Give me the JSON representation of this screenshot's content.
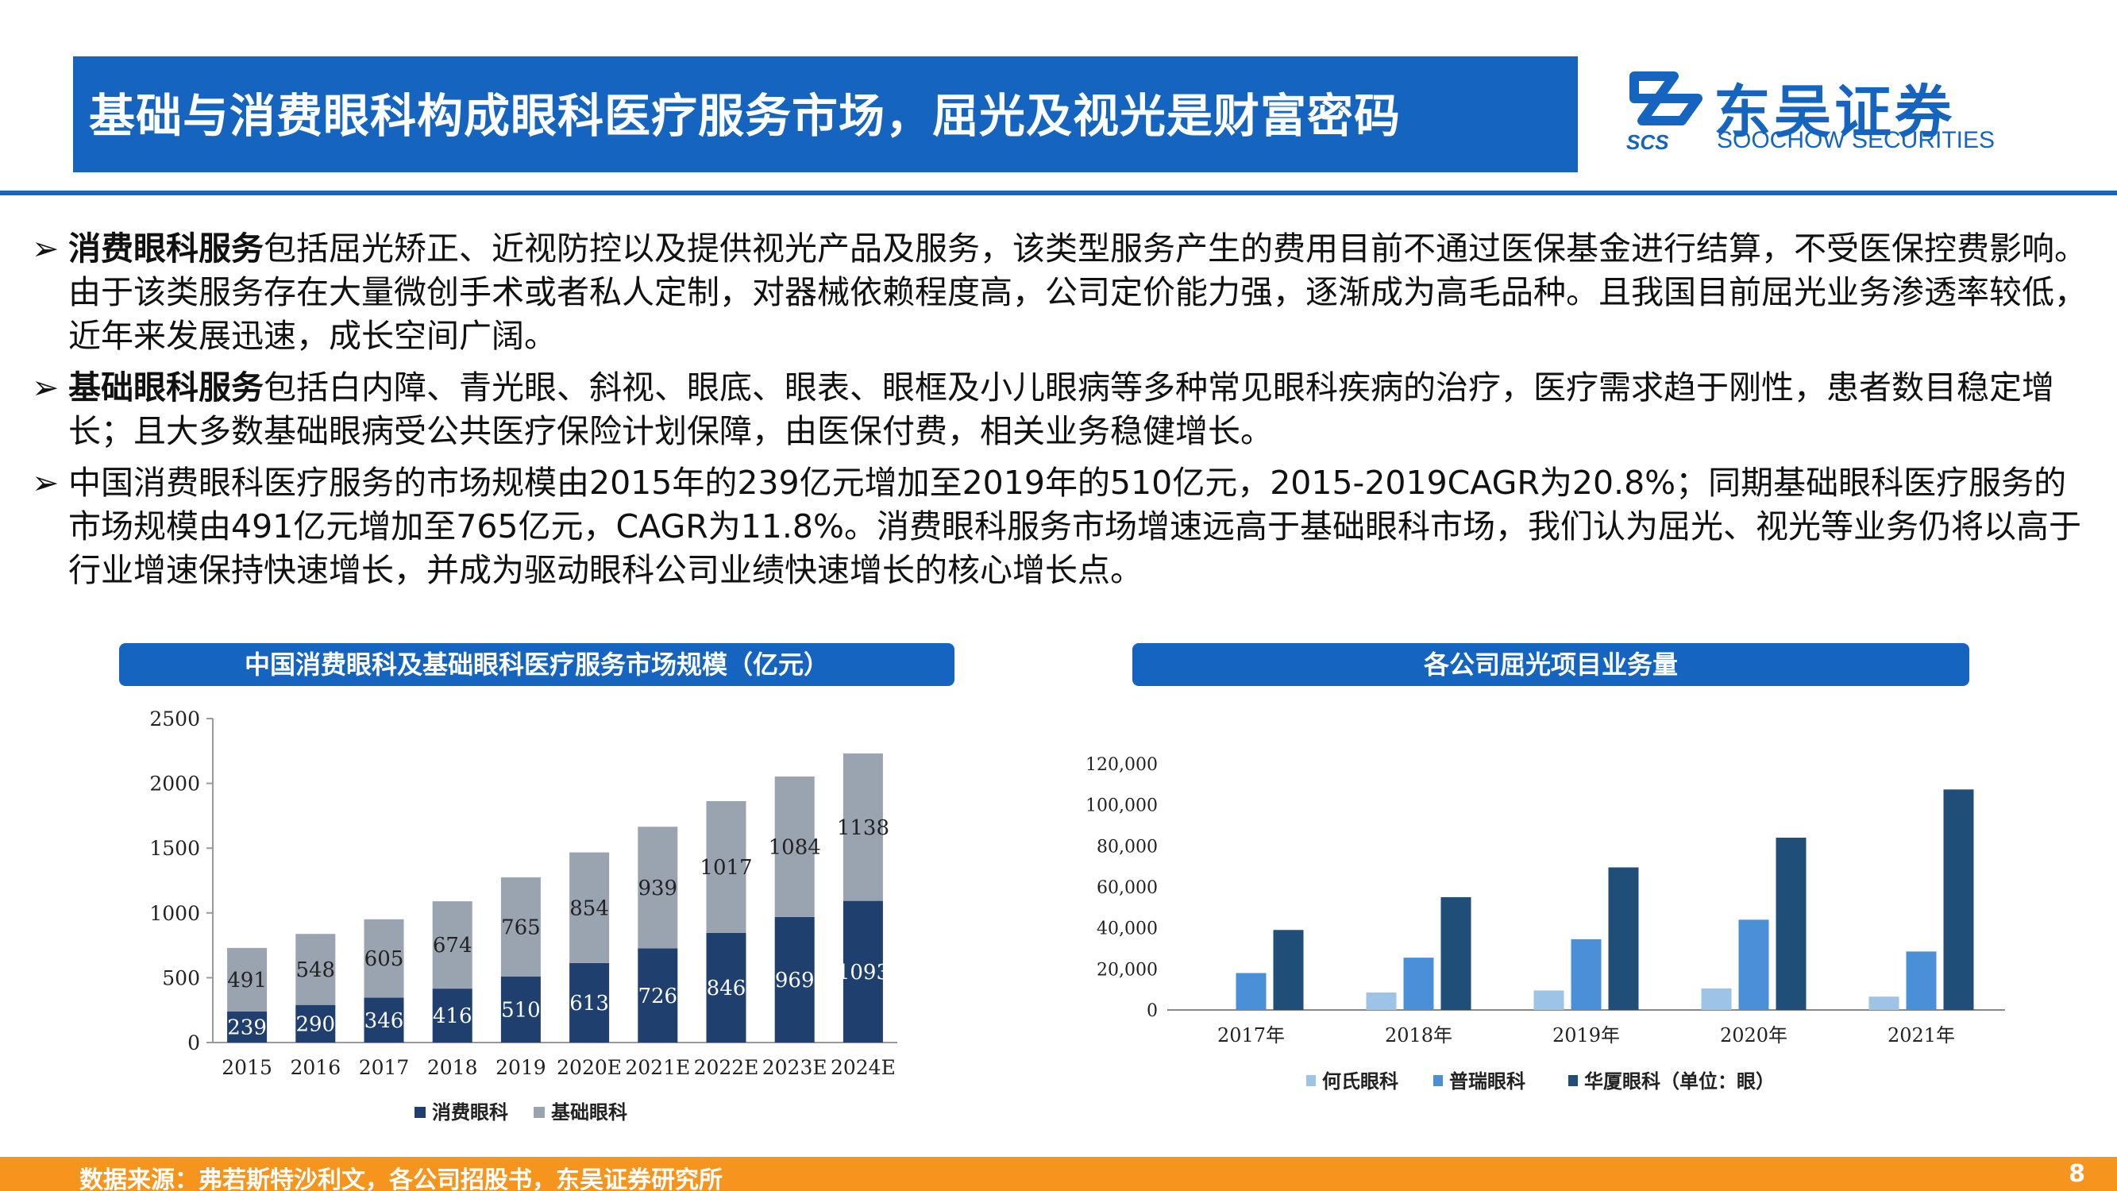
{
  "header": {
    "title": "基础与消费眼科构成眼科医疗服务市场，屈光及视光是财富密码",
    "logo": {
      "name": "东吴证券",
      "en": "SOOCHOW SECURITIES",
      "abbr": "SCS"
    },
    "colors": {
      "brand": "#1565c0",
      "footer": "#f5951d"
    }
  },
  "bullets": [
    {
      "mark": "➢",
      "bold": "消费眼科服务",
      "text": "包括屈光矫正、近视防控以及提供视光产品及服务，该类型服务产生的费用目前不通过医保基金进行结算，不受医保控费影响。由于该类服务存在大量微创手术或者私人定制，对器械依赖程度高，公司定价能力强，逐渐成为高毛品种。且我国目前屈光业务渗透率较低，近年来发展迅速，成长空间广阔。"
    },
    {
      "mark": "➢",
      "bold": "基础眼科服务",
      "text": "包括白内障、青光眼、斜视、眼底、眼表、眼框及小儿眼病等多种常见眼科疾病的治疗，医疗需求趋于刚性，患者数目稳定增长；且大多数基础眼病受公共医疗保险计划保障，由医保付费，相关业务稳健增长。"
    },
    {
      "mark": "➢",
      "bold": "",
      "text": "中国消费眼科医疗服务的市场规模由2015年的239亿元增加至2019年的510亿元，2015-2019CAGR为20.8%；同期基础眼科医疗服务的市场规模由491亿元增加至765亿元，CAGR为11.8%。消费眼科服务市场增速远高于基础眼科市场，我们认为屈光、视光等业务仍将以高于行业增速保持快速增长，并成为驱动眼科公司业绩快速增长的核心增长点。"
    }
  ],
  "chart_data": [
    {
      "type": "bar",
      "stacked": true,
      "title": "中国消费眼科及基础眼科医疗服务市场规模（亿元）",
      "categories": [
        "2015",
        "2016",
        "2017",
        "2018",
        "2019",
        "2020E",
        "2021E",
        "2022E",
        "2023E",
        "2024E"
      ],
      "series": [
        {
          "name": "消费眼科",
          "color": "#1f3f6e",
          "values": [
            239,
            290,
            346,
            416,
            510,
            613,
            726,
            846,
            969,
            1093
          ]
        },
        {
          "name": "基础眼科",
          "color": "#9aa3b0",
          "values": [
            491,
            548,
            605,
            674,
            765,
            854,
            939,
            1017,
            1084,
            1138
          ]
        }
      ],
      "yticks": [
        "0",
        "500",
        "1000",
        "1500",
        "2000",
        "2500"
      ],
      "ylim": [
        0,
        2500
      ],
      "grid": false,
      "legend": "bottom"
    },
    {
      "type": "bar",
      "title": "各公司屈光项目业务量",
      "categories": [
        "2017年",
        "2018年",
        "2019年",
        "2020年",
        "2021年"
      ],
      "series": [
        {
          "name": "何氏眼科",
          "color": "#9dc3e6",
          "values": [
            0,
            8500,
            9500,
            10500,
            6500
          ]
        },
        {
          "name": "普瑞眼科",
          "color": "#4a90d9",
          "values": [
            18000,
            25500,
            34500,
            44000,
            28500
          ]
        },
        {
          "name": "华厦眼科（单位：眼）",
          "color": "#1f4e79",
          "values": [
            39000,
            55000,
            69500,
            84000,
            107500
          ]
        }
      ],
      "yticks": [
        "0",
        "20,000",
        "40,000",
        "60,000",
        "80,000",
        "100,000",
        "120,000"
      ],
      "ylim": [
        0,
        120000
      ],
      "grid": false,
      "legend": "bottom"
    }
  ],
  "footer": {
    "source": "数据来源：弗若斯特沙利文，各公司招股书，东吴证券研究所",
    "page": "8"
  }
}
